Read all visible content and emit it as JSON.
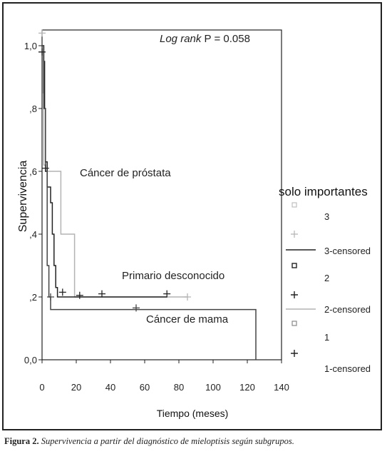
{
  "chart_data": {
    "type": "line",
    "subtype": "kaplan-meier survival curves",
    "xlabel": "Tiempo (meses)",
    "ylabel": "Supervivencia",
    "xlim": [
      0,
      140
    ],
    "ylim": [
      0,
      1.05
    ],
    "x_ticks": [
      0,
      20,
      40,
      60,
      80,
      100,
      120,
      140
    ],
    "x_tick_labels": [
      "0",
      "20",
      "40",
      "60",
      "80",
      "100",
      "120",
      "140"
    ],
    "y_ticks": [
      0,
      0.2,
      0.4,
      0.6,
      0.8,
      1.0
    ],
    "y_tick_labels": [
      "0,0",
      ",2",
      ",4",
      ",6",
      ",8",
      "1,0"
    ],
    "grid": false,
    "stat_annotation": {
      "label_italic": "Log rank",
      "label_plain": " P = 0.058"
    },
    "curve_labels": [
      "Cáncer de próstata",
      "Primario desconocido",
      "Cáncer de mama"
    ],
    "legend": {
      "title": "solo importantes",
      "position": "right",
      "entries": [
        "3",
        "3-censored",
        "2",
        "2-censored",
        "1",
        "1-censored"
      ]
    },
    "series": [
      {
        "group": "3",
        "color": "#b3b3b3",
        "steps": [
          [
            0,
            1.0
          ],
          [
            0.5,
            0.85
          ],
          [
            1,
            0.62
          ],
          [
            2,
            0.6
          ],
          [
            11,
            0.6
          ],
          [
            11,
            0.4
          ],
          [
            19,
            0.4
          ],
          [
            19,
            0.2
          ],
          [
            85,
            0.2
          ]
        ],
        "censored": [
          [
            0,
            1.04
          ],
          [
            85,
            0.2
          ]
        ]
      },
      {
        "group": "2",
        "color": "#222222",
        "steps": [
          [
            0,
            1.0
          ],
          [
            1,
            0.95
          ],
          [
            1.5,
            0.8
          ],
          [
            2,
            0.63
          ],
          [
            3,
            0.55
          ],
          [
            5,
            0.5
          ],
          [
            6,
            0.4
          ],
          [
            7,
            0.3
          ],
          [
            8,
            0.23
          ],
          [
            9,
            0.2
          ],
          [
            12,
            0.2
          ],
          [
            73,
            0.2
          ]
        ],
        "censored": [
          [
            0,
            0.98
          ],
          [
            2,
            0.61
          ],
          [
            12,
            0.215
          ],
          [
            22,
            0.205
          ],
          [
            35,
            0.21
          ],
          [
            73,
            0.21
          ]
        ]
      },
      {
        "group": "1",
        "color": "#444444",
        "steps": [
          [
            0,
            1.0
          ],
          [
            1,
            0.8
          ],
          [
            2,
            0.6
          ],
          [
            3,
            0.3
          ],
          [
            4,
            0.2
          ],
          [
            5,
            0.16
          ],
          [
            40,
            0.16
          ],
          [
            125,
            0.16
          ],
          [
            125,
            0.0
          ]
        ],
        "censored": [
          [
            5,
            0.2
          ],
          [
            55,
            0.165
          ]
        ]
      }
    ]
  },
  "caption": {
    "label": "Figura 2.",
    "text": " Supervivencia a partir del diagnóstico de mieloptisis según subgrupos."
  }
}
